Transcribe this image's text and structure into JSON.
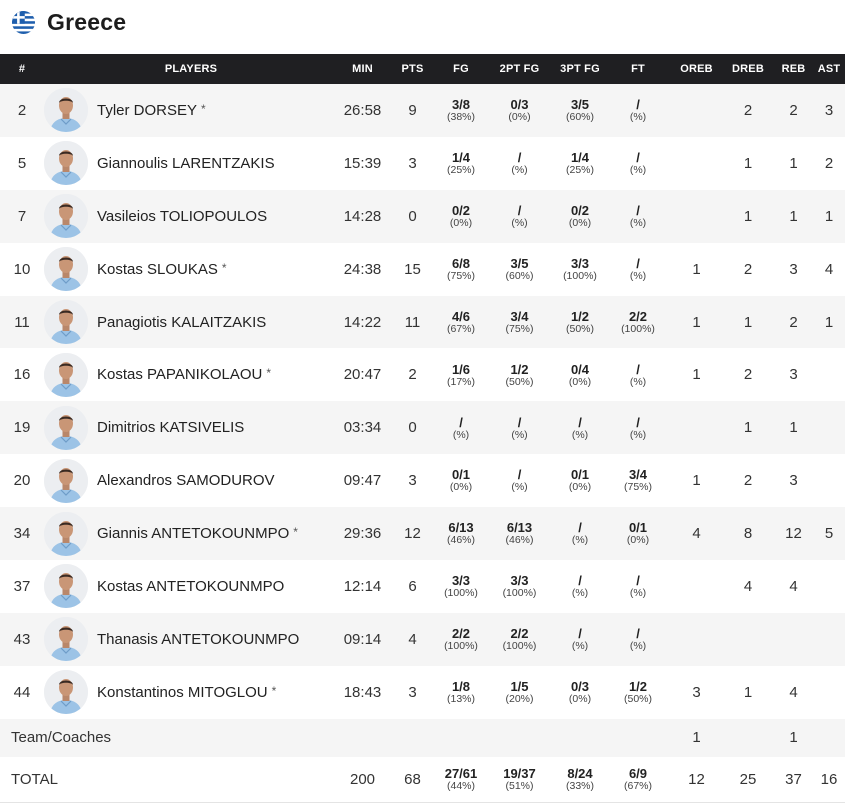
{
  "team": {
    "name": "Greece"
  },
  "columns": [
    "#",
    "PLAYERS",
    "MIN",
    "PTS",
    "FG",
    "2PT FG",
    "3PT FG",
    "FT",
    "OREB",
    "DREB",
    "REB",
    "AST"
  ],
  "players": [
    {
      "num": "2",
      "name": "Tyler DORSEY",
      "star": "*",
      "min": "26:58",
      "pts": "9",
      "fg": "3/8",
      "fg_pct": "(38%)",
      "fg2": "0/3",
      "fg2_pct": "(0%)",
      "fg3": "3/5",
      "fg3_pct": "(60%)",
      "ft": "/",
      "ft_pct": "(%)",
      "oreb": "",
      "dreb": "2",
      "reb": "2",
      "ast": "3"
    },
    {
      "num": "5",
      "name": "Giannoulis LARENTZAKIS",
      "star": "",
      "min": "15:39",
      "pts": "3",
      "fg": "1/4",
      "fg_pct": "(25%)",
      "fg2": "/",
      "fg2_pct": "(%)",
      "fg3": "1/4",
      "fg3_pct": "(25%)",
      "ft": "/",
      "ft_pct": "(%)",
      "oreb": "",
      "dreb": "1",
      "reb": "1",
      "ast": "2"
    },
    {
      "num": "7",
      "name": "Vasileios TOLIOPOULOS",
      "star": "",
      "min": "14:28",
      "pts": "0",
      "fg": "0/2",
      "fg_pct": "(0%)",
      "fg2": "/",
      "fg2_pct": "(%)",
      "fg3": "0/2",
      "fg3_pct": "(0%)",
      "ft": "/",
      "ft_pct": "(%)",
      "oreb": "",
      "dreb": "1",
      "reb": "1",
      "ast": "1"
    },
    {
      "num": "10",
      "name": "Kostas SLOUKAS",
      "star": "*",
      "min": "24:38",
      "pts": "15",
      "fg": "6/8",
      "fg_pct": "(75%)",
      "fg2": "3/5",
      "fg2_pct": "(60%)",
      "fg3": "3/3",
      "fg3_pct": "(100%)",
      "ft": "/",
      "ft_pct": "(%)",
      "oreb": "1",
      "dreb": "2",
      "reb": "3",
      "ast": "4"
    },
    {
      "num": "11",
      "name": "Panagiotis KALAITZAKIS",
      "star": "",
      "min": "14:22",
      "pts": "11",
      "fg": "4/6",
      "fg_pct": "(67%)",
      "fg2": "3/4",
      "fg2_pct": "(75%)",
      "fg3": "1/2",
      "fg3_pct": "(50%)",
      "ft": "2/2",
      "ft_pct": "(100%)",
      "oreb": "1",
      "dreb": "1",
      "reb": "2",
      "ast": "1"
    },
    {
      "num": "16",
      "name": "Kostas PAPANIKOLAOU",
      "star": "*",
      "min": "20:47",
      "pts": "2",
      "fg": "1/6",
      "fg_pct": "(17%)",
      "fg2": "1/2",
      "fg2_pct": "(50%)",
      "fg3": "0/4",
      "fg3_pct": "(0%)",
      "ft": "/",
      "ft_pct": "(%)",
      "oreb": "1",
      "dreb": "2",
      "reb": "3",
      "ast": ""
    },
    {
      "num": "19",
      "name": "Dimitrios KATSIVELIS",
      "star": "",
      "min": "03:34",
      "pts": "0",
      "fg": "/",
      "fg_pct": "(%)",
      "fg2": "/",
      "fg2_pct": "(%)",
      "fg3": "/",
      "fg3_pct": "(%)",
      "ft": "/",
      "ft_pct": "(%)",
      "oreb": "",
      "dreb": "1",
      "reb": "1",
      "ast": ""
    },
    {
      "num": "20",
      "name": "Alexandros SAMODUROV",
      "star": "",
      "min": "09:47",
      "pts": "3",
      "fg": "0/1",
      "fg_pct": "(0%)",
      "fg2": "/",
      "fg2_pct": "(%)",
      "fg3": "0/1",
      "fg3_pct": "(0%)",
      "ft": "3/4",
      "ft_pct": "(75%)",
      "oreb": "1",
      "dreb": "2",
      "reb": "3",
      "ast": ""
    },
    {
      "num": "34",
      "name": "Giannis ANTETOKOUNMPO",
      "star": "*",
      "min": "29:36",
      "pts": "12",
      "fg": "6/13",
      "fg_pct": "(46%)",
      "fg2": "6/13",
      "fg2_pct": "(46%)",
      "fg3": "/",
      "fg3_pct": "(%)",
      "ft": "0/1",
      "ft_pct": "(0%)",
      "oreb": "4",
      "dreb": "8",
      "reb": "12",
      "ast": "5"
    },
    {
      "num": "37",
      "name": "Kostas ANTETOKOUNMPO",
      "star": "",
      "min": "12:14",
      "pts": "6",
      "fg": "3/3",
      "fg_pct": "(100%)",
      "fg2": "3/3",
      "fg2_pct": "(100%)",
      "fg3": "/",
      "fg3_pct": "(%)",
      "ft": "/",
      "ft_pct": "(%)",
      "oreb": "",
      "dreb": "4",
      "reb": "4",
      "ast": ""
    },
    {
      "num": "43",
      "name": "Thanasis ANTETOKOUNMPO",
      "star": "",
      "min": "09:14",
      "pts": "4",
      "fg": "2/2",
      "fg_pct": "(100%)",
      "fg2": "2/2",
      "fg2_pct": "(100%)",
      "fg3": "/",
      "fg3_pct": "(%)",
      "ft": "/",
      "ft_pct": "(%)",
      "oreb": "",
      "dreb": "",
      "reb": "",
      "ast": ""
    },
    {
      "num": "44",
      "name": "Konstantinos MITOGLOU",
      "star": "*",
      "min": "18:43",
      "pts": "3",
      "fg": "1/8",
      "fg_pct": "(13%)",
      "fg2": "1/5",
      "fg2_pct": "(20%)",
      "fg3": "0/3",
      "fg3_pct": "(0%)",
      "ft": "1/2",
      "ft_pct": "(50%)",
      "oreb": "3",
      "dreb": "1",
      "reb": "4",
      "ast": ""
    }
  ],
  "team_coaches": {
    "label": "Team/Coaches",
    "oreb": "1",
    "dreb": "",
    "reb": "1",
    "ast": ""
  },
  "totals": {
    "label": "TOTAL",
    "min": "200",
    "pts": "68",
    "fg": "27/61",
    "fg_pct": "(44%)",
    "fg2": "19/37",
    "fg2_pct": "(51%)",
    "fg3": "8/24",
    "fg3_pct": "(33%)",
    "ft": "6/9",
    "ft_pct": "(67%)",
    "oreb": "12",
    "dreb": "25",
    "reb": "37",
    "ast": "16"
  },
  "colors": {
    "header_bg": "#1f1f22",
    "row_alt": "#f5f5f5",
    "jersey": "#9cc3e6",
    "flag_blue": "#1f5fad"
  }
}
